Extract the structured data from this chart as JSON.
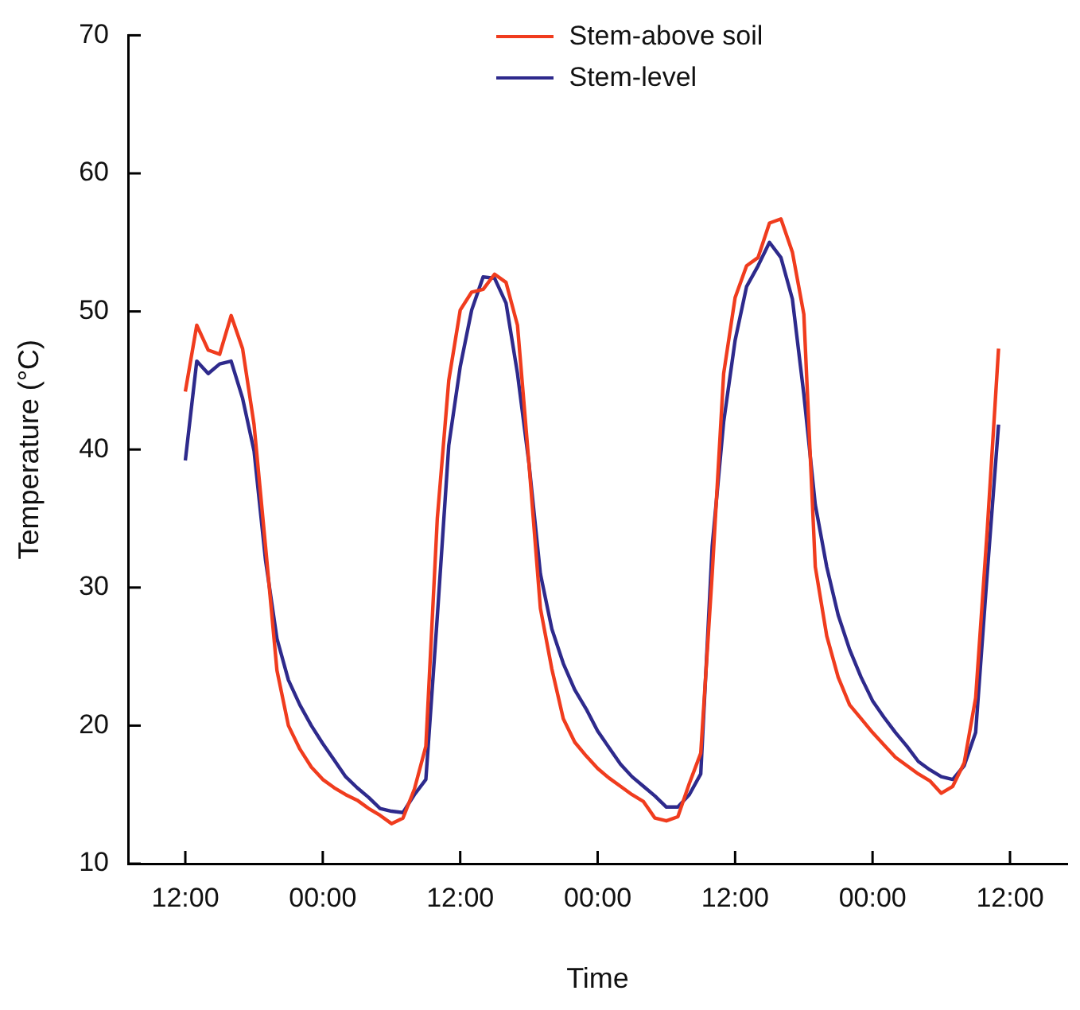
{
  "chart_data": {
    "type": "line",
    "xlabel": "Time",
    "ylabel": "Temperature (°C)",
    "categories": [
      "12:00",
      null,
      null,
      null,
      null,
      null,
      null,
      null,
      null,
      null,
      null,
      null,
      "00:00",
      null,
      null,
      null,
      null,
      null,
      null,
      null,
      null,
      null,
      null,
      null,
      "12:00",
      null,
      null,
      null,
      null,
      null,
      null,
      null,
      null,
      null,
      null,
      null,
      "00:00",
      null,
      null,
      null,
      null,
      null,
      null,
      null,
      null,
      null,
      null,
      null,
      "12:00",
      null,
      null,
      null,
      null,
      null,
      null,
      null,
      null,
      null,
      null,
      null,
      "00:00",
      null,
      null,
      null,
      null,
      null,
      null,
      null,
      null,
      null,
      null,
      null,
      "12:00"
    ],
    "ylim": [
      10,
      70
    ],
    "yticks": [
      10,
      20,
      30,
      40,
      50,
      60,
      70
    ],
    "grid": false,
    "legend": "top",
    "marker": "none",
    "line_style": "solid",
    "series": [
      {
        "name": "Stem-above soil",
        "color": "#f03c1e",
        "values": [
          44.2,
          49,
          47.2,
          46.9,
          49.7,
          47.3,
          41.8,
          33,
          24,
          20,
          18.3,
          17,
          16.1,
          15.5,
          15,
          14.6,
          14,
          13.5,
          12.9,
          13.3,
          15.4,
          18.5,
          35,
          45,
          50.1,
          51.4,
          51.6,
          52.7,
          52.1,
          49,
          39,
          28.5,
          24.1,
          20.5,
          18.8,
          17.8,
          16.9,
          16.2,
          15.6,
          15,
          14.5,
          13.3,
          13.1,
          13.4,
          15.8,
          18,
          31,
          45.5,
          51,
          53.3,
          53.9,
          56.4,
          56.7,
          54.3,
          49.8,
          31.5,
          26.5,
          23.5,
          21.5,
          20.5,
          19.5,
          18.6,
          17.7,
          17.1,
          16.5,
          16,
          15.1,
          15.6,
          17.3,
          22,
          34,
          47.3,
          null
        ]
      },
      {
        "name": "Stem-level",
        "color": "#2e2a8c",
        "values": [
          39.2,
          46.4,
          45.5,
          46.2,
          46.4,
          43.7,
          39.9,
          32,
          26.3,
          23.3,
          21.5,
          20,
          18.7,
          17.5,
          16.3,
          15.5,
          14.8,
          14,
          13.8,
          13.7,
          15,
          16.1,
          27.9,
          40.3,
          46,
          50.1,
          52.5,
          52.4,
          50.6,
          45.5,
          39,
          31,
          27,
          24.5,
          22.6,
          21.2,
          19.6,
          18.4,
          17.2,
          16.3,
          15.6,
          14.9,
          14.1,
          14.1,
          15,
          16.5,
          33,
          42,
          47.9,
          51.8,
          53.3,
          55,
          53.9,
          50.9,
          44,
          36,
          31.5,
          28,
          25.5,
          23.5,
          21.8,
          20.6,
          19.5,
          18.5,
          17.4,
          16.8,
          16.3,
          16.1,
          17.1,
          19.5,
          30.9,
          41.8,
          null
        ]
      }
    ]
  }
}
